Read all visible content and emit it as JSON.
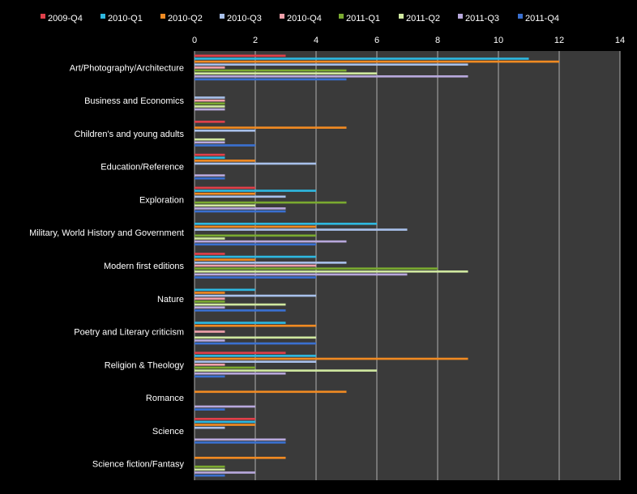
{
  "chart_data": {
    "type": "bar",
    "orientation": "horizontal",
    "title": "",
    "xlabel": "",
    "ylabel": "",
    "xlim": [
      0,
      14
    ],
    "xticks": [
      0,
      2,
      4,
      6,
      8,
      10,
      12,
      14
    ],
    "grid": true,
    "legend_position": "top",
    "categories": [
      "Art/Photography/Architecture",
      "Business and Economics",
      "Children's and young adults",
      "Education/Reference",
      "Exploration",
      "Military, World History and Government",
      "Modern first editions",
      "Nature",
      "Poetry and Literary criticism",
      "Religion & Theology",
      "Romance",
      "Science",
      "Science fiction/Fantasy"
    ],
    "series": [
      {
        "name": "2009-Q4",
        "color": "#e0404a",
        "values": [
          3,
          0,
          1,
          1,
          2,
          0,
          1,
          0,
          0,
          3,
          0,
          2,
          0
        ]
      },
      {
        "name": "2010-Q1",
        "color": "#2eb8e0",
        "values": [
          11,
          0,
          0,
          1,
          4,
          6,
          4,
          2,
          3,
          4,
          0,
          2,
          0
        ]
      },
      {
        "name": "2010-Q2",
        "color": "#f08a22",
        "values": [
          12,
          0,
          5,
          2,
          2,
          4,
          2,
          1,
          4,
          9,
          5,
          2,
          3
        ]
      },
      {
        "name": "2010-Q3",
        "color": "#a8c0ea",
        "values": [
          9,
          1,
          2,
          4,
          3,
          7,
          5,
          4,
          0,
          4,
          0,
          1,
          0
        ]
      },
      {
        "name": "2010-Q4",
        "color": "#f0a0aa",
        "values": [
          1,
          1,
          0,
          0,
          0,
          0,
          4,
          1,
          1,
          1,
          0,
          0,
          0
        ]
      },
      {
        "name": "2011-Q1",
        "color": "#7aaa30",
        "values": [
          5,
          1,
          0,
          0,
          5,
          4,
          8,
          1,
          0,
          2,
          0,
          0,
          1
        ]
      },
      {
        "name": "2011-Q2",
        "color": "#d0e8a0",
        "values": [
          6,
          1,
          1,
          0,
          2,
          1,
          9,
          3,
          4,
          6,
          0,
          0,
          1
        ]
      },
      {
        "name": "2011-Q3",
        "color": "#b8a8dc",
        "values": [
          9,
          1,
          1,
          1,
          3,
          5,
          7,
          1,
          1,
          3,
          2,
          3,
          2
        ]
      },
      {
        "name": "2011-Q4",
        "color": "#3a70d0",
        "values": [
          5,
          0,
          2,
          1,
          3,
          4,
          4,
          3,
          4,
          1,
          1,
          3,
          1
        ]
      }
    ]
  },
  "colors": {
    "background": "#000000",
    "plot_area": "#3a3a3a",
    "gridline": "#b0b0b0",
    "text": "#ffffff"
  }
}
